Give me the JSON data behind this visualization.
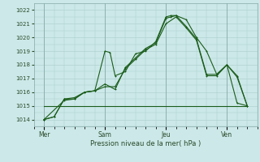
{
  "title": "",
  "xlabel": "Pression niveau de la mer( hPa )",
  "bg_color": "#cce8e8",
  "grid_color": "#aacccc",
  "line_color": "#1a5c1a",
  "ylim": [
    1013.5,
    1022.5
  ],
  "yticks": [
    1014,
    1015,
    1016,
    1017,
    1018,
    1019,
    1020,
    1021,
    1022
  ],
  "day_labels": [
    "Mer",
    "Sam",
    "Jeu",
    "Ven"
  ],
  "day_positions": [
    0,
    3,
    6,
    9
  ],
  "series1_x": [
    0,
    0.5,
    1.0,
    1.5,
    2.0,
    2.5,
    3.0,
    3.25,
    3.5,
    4.0,
    4.5,
    5.0,
    5.5,
    6.0,
    6.25,
    6.5,
    7.0,
    7.5,
    8.0,
    8.5,
    9.0,
    9.5,
    10.0
  ],
  "series1_y": [
    1014.0,
    1014.2,
    1015.5,
    1015.5,
    1016.0,
    1016.1,
    1019.0,
    1018.9,
    1017.2,
    1017.5,
    1018.8,
    1019.0,
    1019.7,
    1021.5,
    1021.6,
    1021.6,
    1021.3,
    1020.0,
    1019.0,
    1017.3,
    1018.0,
    1015.2,
    1015.0
  ],
  "series2_x": [
    0,
    0.5,
    1.0,
    1.5,
    2.0,
    2.5,
    3.0,
    3.5,
    4.0,
    4.5,
    5.0,
    5.5,
    6.0,
    6.25,
    6.5,
    7.0,
    7.5,
    8.0,
    8.5,
    9.0,
    9.5,
    10.0
  ],
  "series2_y": [
    1014.0,
    1014.2,
    1015.5,
    1015.6,
    1016.0,
    1016.1,
    1016.6,
    1016.2,
    1017.8,
    1018.5,
    1019.2,
    1019.6,
    1021.4,
    1021.5,
    1021.6,
    1020.8,
    1019.9,
    1017.3,
    1017.3,
    1018.0,
    1017.2,
    1015.0
  ],
  "series3_x": [
    0,
    1.0,
    1.5,
    2.0,
    2.5,
    3.0,
    3.5,
    4.0,
    4.5,
    5.0,
    5.5,
    6.0,
    6.5,
    7.0,
    7.5,
    8.0,
    8.5,
    9.0,
    9.5,
    10.0
  ],
  "series3_y": [
    1014.0,
    1015.4,
    1015.5,
    1016.0,
    1016.1,
    1016.4,
    1016.4,
    1017.7,
    1018.4,
    1019.1,
    1019.5,
    1021.0,
    1021.5,
    1020.7,
    1019.8,
    1017.2,
    1017.2,
    1018.0,
    1017.1,
    1015.0
  ],
  "flat_line_x": [
    0,
    10.0
  ],
  "flat_line_y": [
    1015.0,
    1015.0
  ],
  "xlim": [
    -0.3,
    10.5
  ],
  "figsize": [
    3.2,
    2.0
  ],
  "dpi": 100
}
